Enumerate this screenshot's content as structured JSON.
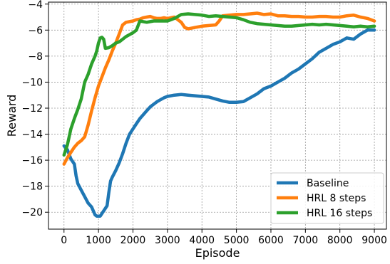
{
  "chart_data": {
    "type": "line",
    "title": "",
    "xlabel": "Episode",
    "ylabel": "Reward",
    "xlim": [
      -450,
      9350
    ],
    "ylim": [
      -21.3,
      -3.85
    ],
    "xticks": [
      0,
      1000,
      2000,
      3000,
      4000,
      5000,
      6000,
      7000,
      8000,
      9000
    ],
    "yticks": [
      -20,
      -18,
      -16,
      -14,
      -12,
      -10,
      -8,
      -6,
      -4
    ],
    "grid": true,
    "legend_position": "bottom-right",
    "series": [
      {
        "name": "Baseline",
        "color": "#1f77b4",
        "x": [
          0,
          100,
          200,
          300,
          350,
          400,
          500,
          600,
          700,
          800,
          900,
          950,
          1050,
          1150,
          1250,
          1300,
          1350,
          1400,
          1500,
          1600,
          1700,
          1800,
          1900,
          2000,
          2100,
          2200,
          2300,
          2400,
          2500,
          2600,
          2700,
          2800,
          2900,
          3000,
          3200,
          3400,
          3600,
          3800,
          4000,
          4200,
          4400,
          4600,
          4800,
          5000,
          5200,
          5400,
          5600,
          5800,
          6000,
          6200,
          6400,
          6600,
          6800,
          7000,
          7200,
          7400,
          7600,
          7800,
          8000,
          8200,
          8400,
          8600,
          8800,
          9000
        ],
        "y": [
          -14.9,
          -15.2,
          -15.9,
          -16.3,
          -17.2,
          -17.8,
          -18.3,
          -18.8,
          -19.3,
          -19.6,
          -20.2,
          -20.3,
          -20.3,
          -19.9,
          -19.5,
          -18.5,
          -17.6,
          -17.3,
          -16.8,
          -16.2,
          -15.5,
          -14.7,
          -14.0,
          -13.6,
          -13.2,
          -12.8,
          -12.5,
          -12.2,
          -11.9,
          -11.7,
          -11.5,
          -11.35,
          -11.2,
          -11.1,
          -11.0,
          -10.95,
          -11.0,
          -11.05,
          -11.1,
          -11.15,
          -11.3,
          -11.45,
          -11.55,
          -11.55,
          -11.5,
          -11.2,
          -10.9,
          -10.5,
          -10.3,
          -10.0,
          -9.7,
          -9.3,
          -9.0,
          -8.6,
          -8.2,
          -7.7,
          -7.4,
          -7.1,
          -6.9,
          -6.6,
          -6.7,
          -6.3,
          -6.0,
          -6.0
        ]
      },
      {
        "name": "HRL 8 steps",
        "color": "#ff7f0e",
        "x": [
          0,
          100,
          200,
          300,
          400,
          500,
          600,
          700,
          800,
          900,
          1000,
          1100,
          1200,
          1300,
          1400,
          1500,
          1600,
          1700,
          1800,
          1900,
          2000,
          2100,
          2200,
          2300,
          2400,
          2500,
          2600,
          2700,
          2800,
          2900,
          3000,
          3200,
          3400,
          3500,
          3600,
          3700,
          3800,
          4000,
          4200,
          4400,
          4500,
          4600,
          4800,
          5000,
          5200,
          5400,
          5600,
          5800,
          6000,
          6200,
          6400,
          6600,
          6800,
          7000,
          7200,
          7400,
          7600,
          7800,
          8000,
          8200,
          8400,
          8600,
          8800,
          9000
        ],
        "y": [
          -16.3,
          -15.8,
          -15.4,
          -15.0,
          -14.7,
          -14.5,
          -14.2,
          -13.3,
          -12.2,
          -11.2,
          -10.3,
          -9.6,
          -8.9,
          -8.3,
          -7.6,
          -7.0,
          -6.3,
          -5.6,
          -5.4,
          -5.35,
          -5.3,
          -5.2,
          -5.15,
          -5.05,
          -5.0,
          -4.95,
          -5.05,
          -5.1,
          -5.1,
          -5.05,
          -5.1,
          -5.0,
          -5.4,
          -5.8,
          -5.9,
          -5.85,
          -5.8,
          -5.7,
          -5.65,
          -5.6,
          -5.3,
          -4.9,
          -4.85,
          -4.8,
          -4.8,
          -4.75,
          -4.7,
          -4.8,
          -4.75,
          -4.9,
          -4.9,
          -4.95,
          -4.95,
          -5.0,
          -5.0,
          -4.95,
          -4.95,
          -5.0,
          -5.0,
          -4.9,
          -4.85,
          -5.0,
          -5.1,
          -5.3
        ]
      },
      {
        "name": "HRL 16 steps",
        "color": "#2ca02c",
        "x": [
          0,
          100,
          200,
          300,
          400,
          500,
          600,
          700,
          800,
          900,
          950,
          1000,
          1050,
          1100,
          1150,
          1200,
          1300,
          1400,
          1500,
          1600,
          1700,
          1800,
          1900,
          2000,
          2100,
          2200,
          2300,
          2400,
          2500,
          2600,
          2800,
          3000,
          3200,
          3400,
          3600,
          3800,
          4000,
          4200,
          4400,
          4600,
          4800,
          5000,
          5200,
          5400,
          5600,
          5800,
          6000,
          6200,
          6400,
          6600,
          6800,
          7000,
          7200,
          7400,
          7600,
          7800,
          8000,
          8200,
          8400,
          8600,
          8800,
          9000
        ],
        "y": [
          -15.6,
          -14.8,
          -13.6,
          -12.8,
          -12.1,
          -11.3,
          -10.0,
          -9.4,
          -8.6,
          -8.0,
          -7.6,
          -7.0,
          -6.6,
          -6.55,
          -6.7,
          -7.4,
          -7.35,
          -7.2,
          -7.0,
          -6.9,
          -6.7,
          -6.5,
          -6.35,
          -6.2,
          -6.0,
          -5.3,
          -5.35,
          -5.4,
          -5.35,
          -5.3,
          -5.3,
          -5.3,
          -5.1,
          -4.8,
          -4.75,
          -4.8,
          -4.85,
          -4.95,
          -4.9,
          -4.95,
          -5.0,
          -5.05,
          -5.2,
          -5.4,
          -5.5,
          -5.55,
          -5.6,
          -5.65,
          -5.7,
          -5.7,
          -5.65,
          -5.6,
          -5.55,
          -5.6,
          -5.55,
          -5.6,
          -5.65,
          -5.7,
          -5.75,
          -5.7,
          -5.75,
          -5.7
        ]
      }
    ]
  }
}
